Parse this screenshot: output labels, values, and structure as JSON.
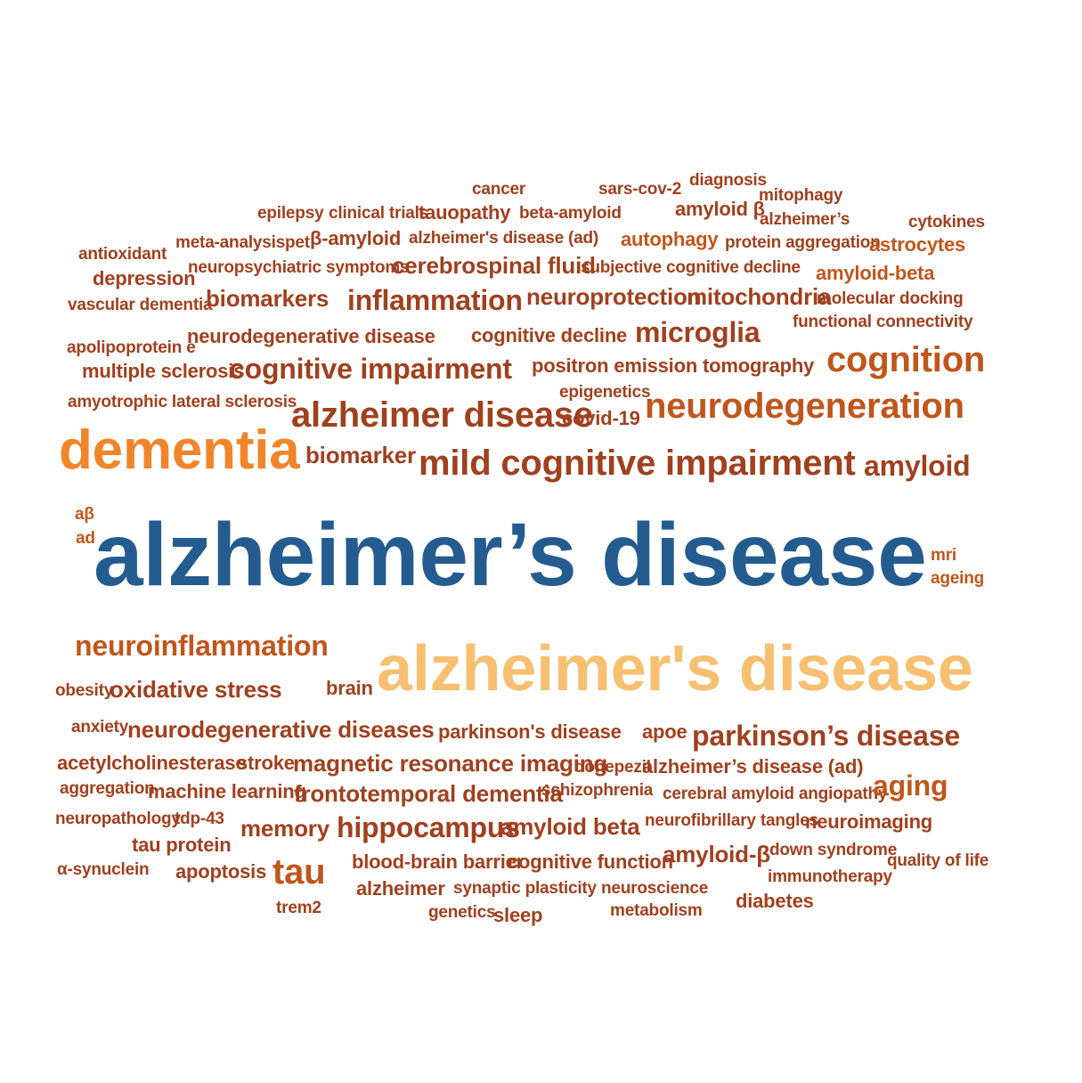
{
  "colors": {
    "brown": "#A0401E",
    "rust": "#C0561B",
    "orange": "#F0852A",
    "peach": "#F6C070",
    "blue": "#245C8F"
  },
  "words": [
    "cancer",
    "sars-cov-2",
    "diagnosis",
    "mitophagy",
    "epilepsy",
    "clinical trials",
    "tauopathy",
    "beta-amyloid",
    "amyloid β",
    "alzheimer’s",
    "cytokines",
    "antioxidant",
    "meta-analysis",
    "pet",
    "β-amyloid",
    "alzheimer's disease (ad)",
    "autophagy",
    "protein aggregation",
    "astrocytes",
    "depression",
    "neuropsychiatric symptoms",
    "cerebrospinal fluid",
    "subjective cognitive decline",
    "amyloid-beta",
    "vascular dementia",
    "biomarkers",
    "inflammation",
    "neuroprotection",
    "mitochondria",
    "molecular docking",
    "functional connectivity",
    "apolipoprotein e",
    "neurodegenerative disease",
    "cognitive decline",
    "microglia",
    "multiple sclerosis",
    "cognitive impairment",
    "positron emission tomography",
    "cognition",
    "epigenetics",
    "amyotrophic lateral sclerosis",
    "alzheimer disease",
    "covid-19",
    "neurodegeneration",
    "dementia",
    "biomarker",
    "mild cognitive impairment",
    "amyloid",
    "aβ",
    "ad",
    "alzheimer’s disease",
    "mri",
    "ageing",
    "neuroinflammation",
    "alzheimer's disease",
    "obesity",
    "oxidative stress",
    "brain",
    "anxiety",
    "neurodegenerative diseases",
    "parkinson's disease",
    "apoe",
    "parkinson’s disease",
    "acetylcholinesterase",
    "stroke",
    "magnetic resonance imaging",
    "donepezil",
    "alzheimer’s disease (ad)",
    "aggregation",
    "machine learning",
    "frontotemporal dementia",
    "schizophrenia",
    "cerebral amyloid angiopathy",
    "aging",
    "neuropathology",
    "tdp-43",
    "memory",
    "hippocampus",
    "amyloid beta",
    "neurofibrillary tangles",
    "neuroimaging",
    "tau protein",
    "tau",
    "amyloid-β",
    "down syndrome",
    "α-synuclein",
    "apoptosis",
    "blood-brain barrier",
    "cognitive function",
    "immunotherapy",
    "quality of life",
    "alzheimer",
    "synaptic plasticity",
    "neuroscience",
    "diabetes",
    "trem2",
    "genetics",
    "sleep",
    "metabolism"
  ]
}
